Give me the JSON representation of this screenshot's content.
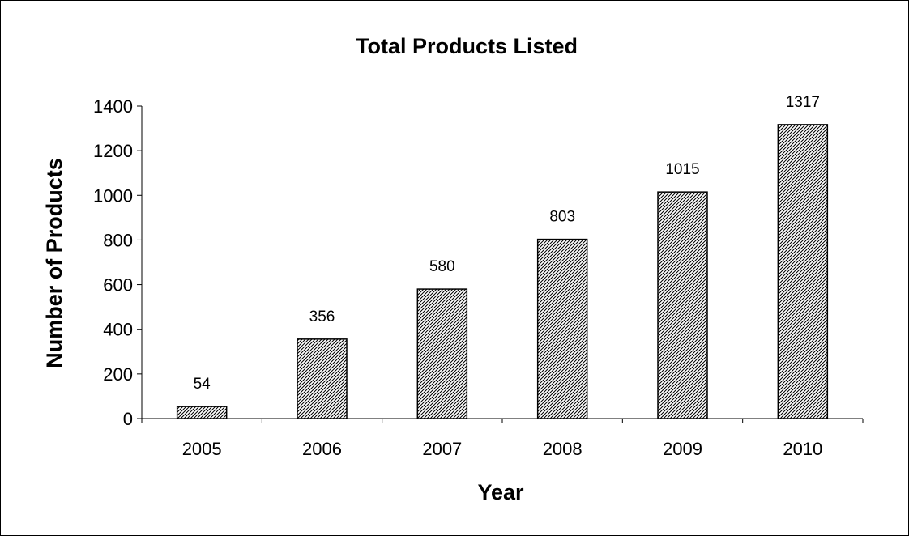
{
  "chart_data": {
    "type": "bar",
    "title": "Total Products Listed",
    "xlabel": "Year",
    "ylabel": "Number of Products",
    "categories": [
      "2005",
      "2006",
      "2007",
      "2008",
      "2009",
      "2010"
    ],
    "values": [
      54,
      356,
      580,
      803,
      1015,
      1317
    ],
    "data_labels": [
      "54",
      "356",
      "580",
      "803",
      "1015",
      "1317"
    ],
    "ylim": [
      0,
      1400
    ],
    "yticks": [
      0,
      200,
      400,
      600,
      800,
      1000,
      1200,
      1400
    ],
    "ytick_labels": [
      "0",
      "200",
      "400",
      "600",
      "800",
      "1000",
      "1200",
      "1400"
    ],
    "grid": false,
    "legend": "none",
    "bar_fill": "diagonal hatch",
    "colors": {
      "bar_stroke": "#000000",
      "hatch": "#000000",
      "background": "#ffffff",
      "frame": "#000000"
    }
  }
}
